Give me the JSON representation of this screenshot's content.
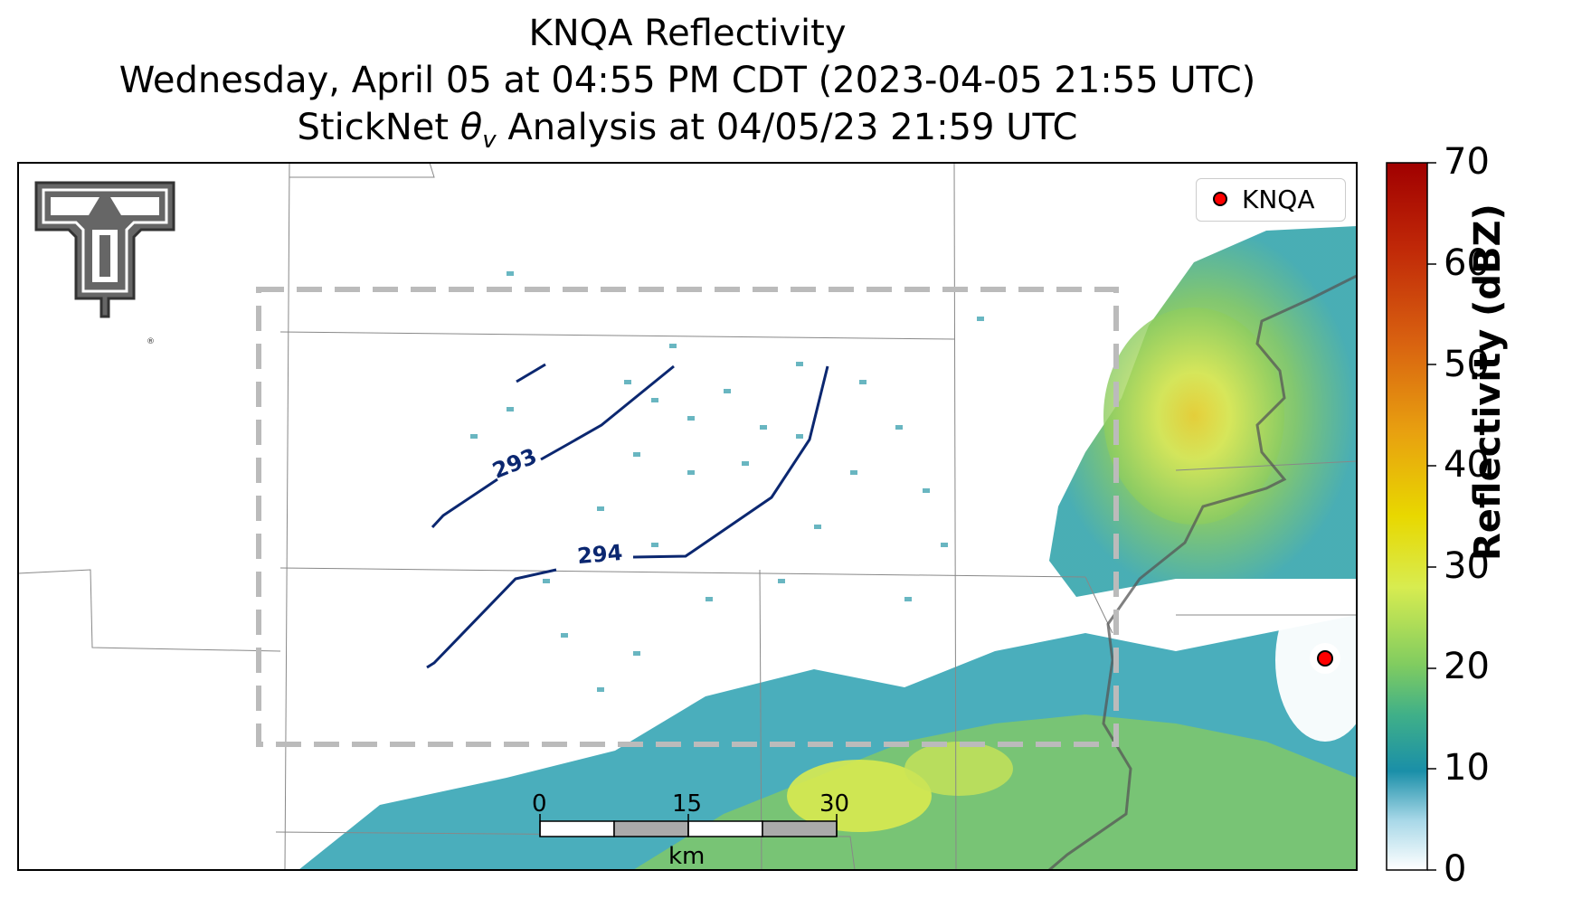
{
  "title": {
    "line1": "KNQA Reflectivity",
    "line2": "Wednesday, April 05 at 04:55 PM CDT (2023-04-05 21:55 UTC)",
    "line3_prefix": "StickNet ",
    "line3_symbol": "θ",
    "line3_subscript": "v",
    "line3_suffix": " Analysis at 04/05/23 21:59 UTC"
  },
  "legend": {
    "label": "KNQA",
    "marker_color": "#ff0000"
  },
  "colorbar": {
    "title": "Reflectivity (dBZ)",
    "ticks": [
      "0",
      "10",
      "20",
      "30",
      "40",
      "50",
      "60",
      "70"
    ],
    "colors": [
      "#ffffff",
      "#1a8fa8",
      "#6cc766",
      "#e8f050",
      "#e0c800",
      "#e08010",
      "#c03010",
      "#a00000"
    ]
  },
  "contours": [
    {
      "label": "293"
    },
    {
      "label": "294"
    }
  ],
  "scale_bar": {
    "ticks": [
      "0",
      "15",
      "30"
    ],
    "unit": "km"
  },
  "logo": {
    "name": "Texas Tech double-T logo"
  }
}
